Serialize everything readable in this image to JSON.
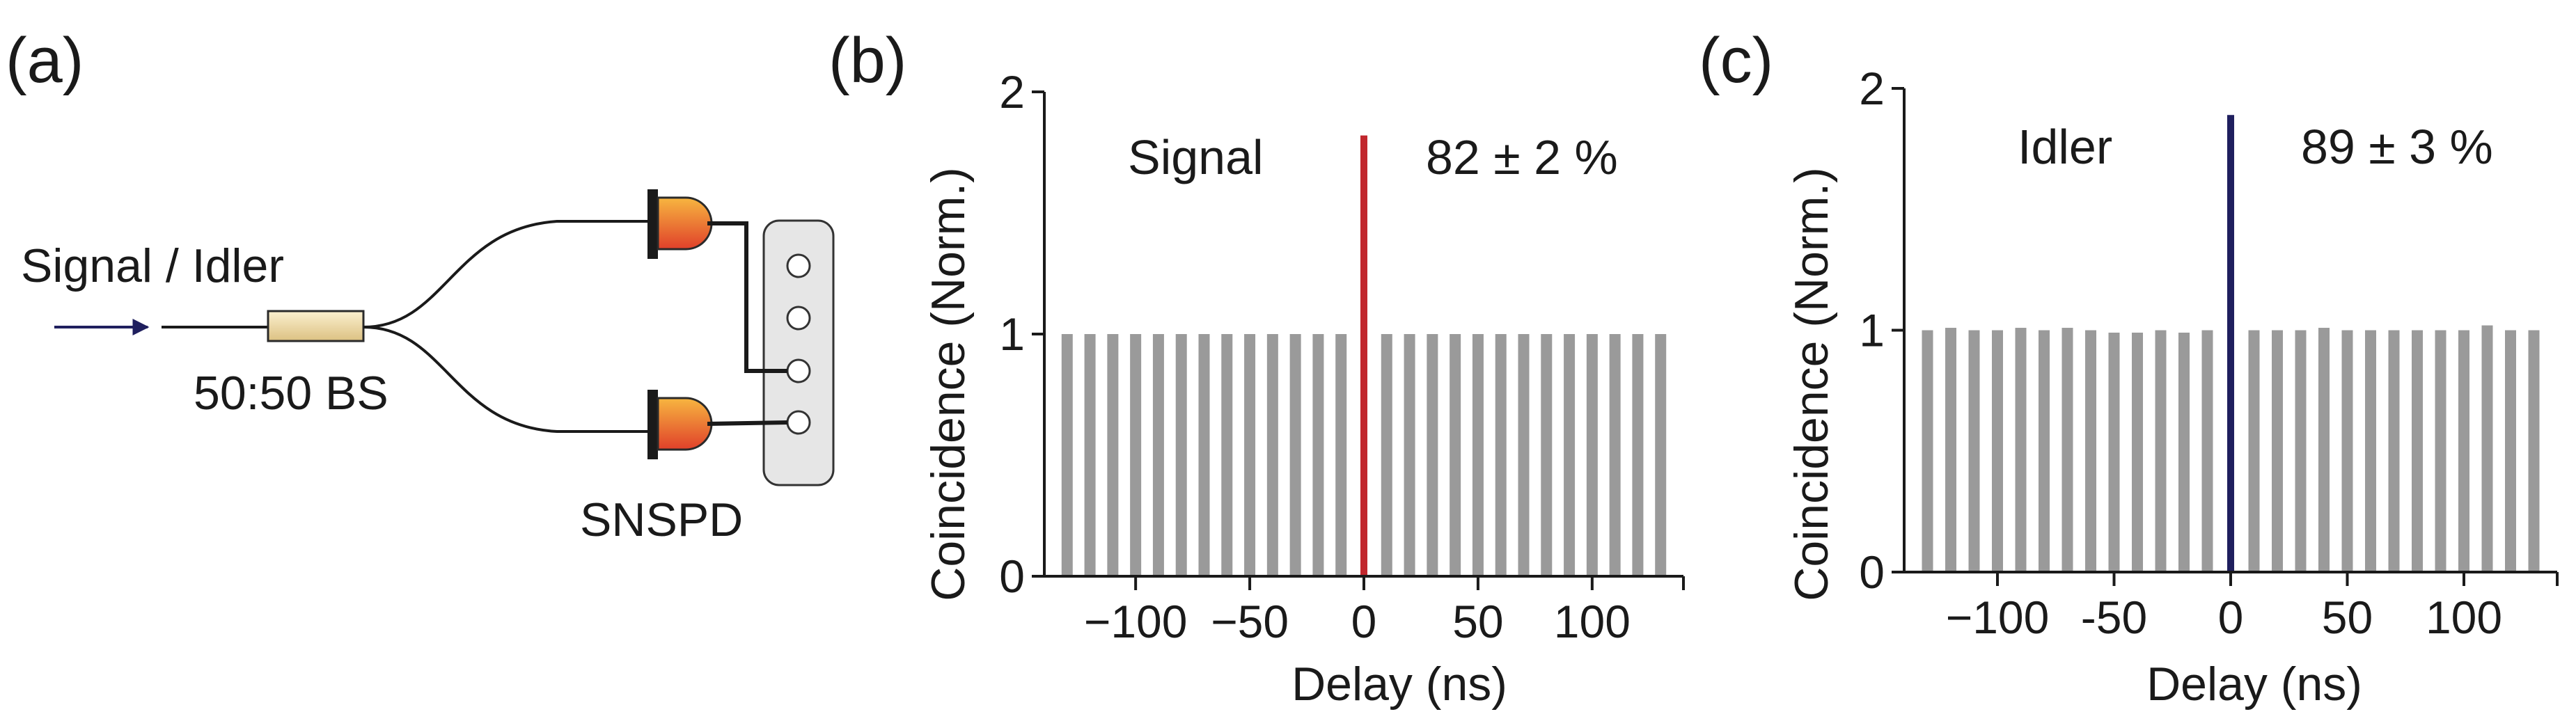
{
  "colors": {
    "bar": "#9a9a9a",
    "signal_peak": "#c1272d",
    "idler_peak": "#1f1f5e",
    "axis": "#1a1a1a",
    "bs_fill_light": "#fbf0cf",
    "bs_fill_dark": "#e0c98a",
    "detector_top": "#f7b640",
    "detector_bottom": "#e0402a",
    "counter_fill": "#e6e6e6",
    "arrow": "#1f1f5e"
  },
  "diagram": {
    "panel_label": "(a)",
    "input_label": "Signal / Idler",
    "beamsplitter_label": "50:50 BS",
    "detector_label": "SNSPD",
    "icons": [
      "arrow-icon",
      "beamsplitter-icon",
      "detector-icon",
      "counter-icon"
    ]
  },
  "chart_data": [
    {
      "type": "bar",
      "panel_label": "(b)",
      "title": "",
      "xlabel": "Delay (ns)",
      "ylabel": "Coincidence (Norm.)",
      "xlim": [
        -140,
        140
      ],
      "ylim": [
        0,
        2
      ],
      "xticks": [
        -100,
        -50,
        0,
        50,
        100
      ],
      "xtick_labels": [
        "−100",
        "−50",
        "0",
        "50",
        "100"
      ],
      "yticks": [
        0,
        1,
        2
      ],
      "ytick_labels": [
        "0",
        "1",
        "2"
      ],
      "grid": false,
      "annotation_name": "Signal",
      "annotation_value": "82 ± 2 %",
      "x": [
        -130,
        -120,
        -110,
        -100,
        -90,
        -80,
        -70,
        -60,
        -50,
        -40,
        -30,
        -20,
        -10,
        10,
        20,
        30,
        40,
        50,
        60,
        70,
        80,
        90,
        100,
        110,
        120,
        130
      ],
      "values": [
        1,
        1,
        1,
        1,
        1,
        1,
        1,
        1,
        1,
        1,
        1,
        1,
        1,
        1,
        1,
        1,
        1,
        1,
        1,
        1,
        1,
        1,
        1,
        1,
        1,
        1
      ],
      "peak": {
        "x": 0,
        "value": 1.82
      }
    },
    {
      "type": "bar",
      "panel_label": "(c)",
      "title": "",
      "xlabel": "Delay (ns)",
      "ylabel": "Coincidence (Norm.)",
      "xlim": [
        -140,
        140
      ],
      "ylim": [
        0,
        2
      ],
      "xticks": [
        -100,
        -50,
        0,
        50,
        100
      ],
      "xtick_labels": [
        "−100",
        "-50",
        "0",
        "50",
        "100"
      ],
      "yticks": [
        0,
        1,
        2
      ],
      "ytick_labels": [
        "0",
        "1",
        "2"
      ],
      "grid": false,
      "annotation_name": "Idler",
      "annotation_value": "89 ± 3 %",
      "x": [
        -130,
        -120,
        -110,
        -100,
        -90,
        -80,
        -70,
        -60,
        -50,
        -40,
        -30,
        -20,
        -10,
        10,
        20,
        30,
        40,
        50,
        60,
        70,
        80,
        90,
        100,
        110,
        120,
        130
      ],
      "values": [
        1,
        1.01,
        1,
        1,
        1.01,
        1,
        1.01,
        1,
        0.99,
        0.99,
        1,
        0.99,
        1,
        1,
        1,
        1,
        1.01,
        1,
        1,
        1,
        1,
        1,
        1,
        1.02,
        1,
        1
      ],
      "peak": {
        "x": 0,
        "value": 1.89
      }
    }
  ]
}
